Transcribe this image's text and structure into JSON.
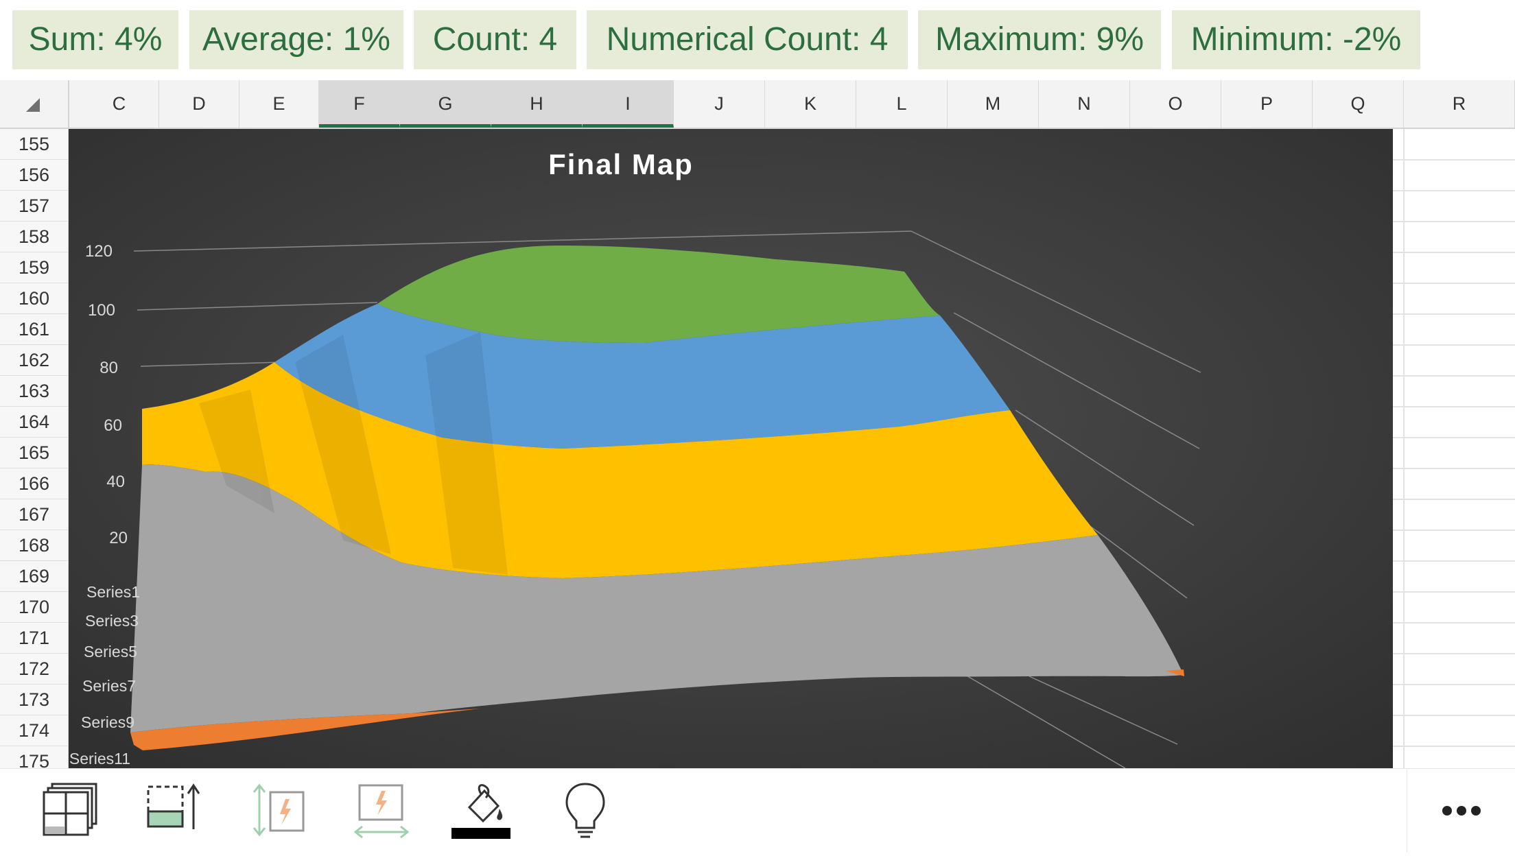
{
  "status_bar": {
    "items": [
      {
        "label": "Sum: 4%"
      },
      {
        "label": "Average: 1%"
      },
      {
        "label": "Count: 4"
      },
      {
        "label": "Numerical Count: 4"
      },
      {
        "label": "Maximum: 9%"
      },
      {
        "label": "Minimum: -2%"
      }
    ],
    "text_color": "#2d6e3e",
    "background_color": "#e7ecd8"
  },
  "columns": [
    "C",
    "D",
    "E",
    "F",
    "G",
    "H",
    "I",
    "J",
    "K",
    "L",
    "M",
    "N",
    "O",
    "P",
    "Q",
    "R"
  ],
  "selected_columns": [
    "F",
    "G",
    "H",
    "I"
  ],
  "rows": [
    "155",
    "156",
    "157",
    "158",
    "159",
    "160",
    "161",
    "162",
    "163",
    "164",
    "165",
    "166",
    "167",
    "168",
    "169",
    "170",
    "171",
    "172",
    "173",
    "174",
    "175"
  ],
  "chart": {
    "title": "Final Map"
  },
  "chart_data": {
    "type": "surface",
    "title": "Final Map",
    "z_axis": {
      "ticks": [
        "20",
        "40",
        "60",
        "80",
        "100",
        "120"
      ],
      "range": [
        0,
        120
      ]
    },
    "series_axis": {
      "ticks": [
        "Series1",
        "Series3",
        "Series5",
        "Series7",
        "Series9",
        "Series11"
      ]
    },
    "bands": [
      {
        "range": [
          0,
          20
        ],
        "color": "#ed7d31"
      },
      {
        "range": [
          20,
          40
        ],
        "color": "#a5a5a5"
      },
      {
        "range": [
          40,
          60
        ],
        "color": "#a5a5a5"
      },
      {
        "range": [
          60,
          80
        ],
        "color": "#ffc000"
      },
      {
        "range": [
          80,
          100
        ],
        "color": "#5b9bd5"
      },
      {
        "range": [
          100,
          120
        ],
        "color": "#70ad47"
      }
    ],
    "background": "dark",
    "grid": true
  },
  "toolbar": {
    "icons": [
      "freeze-panes-icon",
      "format-cells-icon",
      "autofit-row-height-icon",
      "autofit-column-width-icon",
      "fill-color-icon",
      "tell-me-lightbulb-icon"
    ],
    "more_icon": "more-ellipsis-icon",
    "accent_color": "#217346"
  }
}
